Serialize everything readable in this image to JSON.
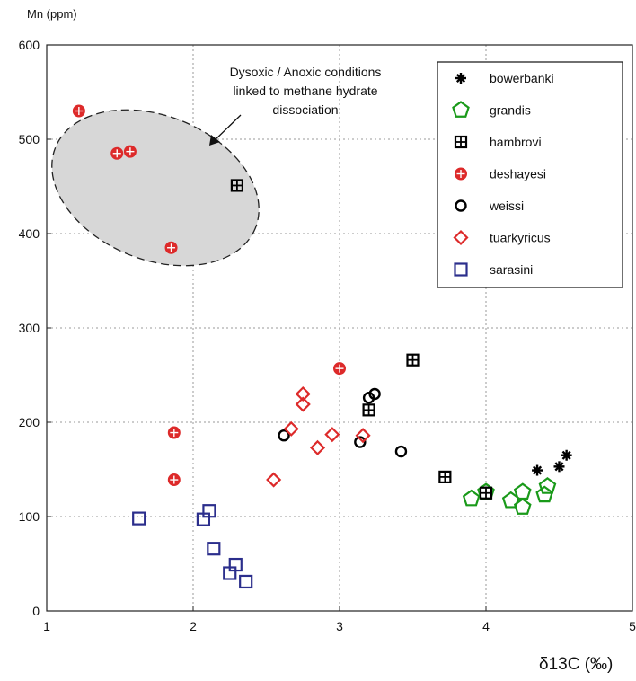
{
  "chart_data": {
    "type": "scatter",
    "ylabel": "Mn (ppm)",
    "xlabel": "δ13C (‰)",
    "xlim": [
      1,
      5
    ],
    "ylim": [
      0,
      600
    ],
    "x_ticks": [
      "1",
      "2",
      "3",
      "4",
      "5"
    ],
    "y_ticks": [
      "0",
      "100",
      "200",
      "300",
      "400",
      "500",
      "600"
    ],
    "grid": true,
    "legend_position": "top-right",
    "annotation": {
      "lines": [
        "Dysoxic / Anoxic conditions",
        "linked to methane hydrate",
        "dissociation"
      ]
    },
    "series": [
      {
        "name": "bowerbanki",
        "marker": "asterisk",
        "color": "#000000",
        "points": [
          [
            4.35,
            149
          ],
          [
            4.5,
            153
          ],
          [
            4.55,
            165
          ]
        ]
      },
      {
        "name": "grandis",
        "marker": "pentagon",
        "color": "#1a9a1a",
        "points": [
          [
            3.9,
            119
          ],
          [
            4.0,
            126
          ],
          [
            4.17,
            117
          ],
          [
            4.25,
            110
          ],
          [
            4.25,
            126
          ],
          [
            4.4,
            123
          ],
          [
            4.42,
            132
          ]
        ]
      },
      {
        "name": "hambrovi",
        "marker": "square-plus",
        "color": "#000000",
        "points": [
          [
            2.3,
            451
          ],
          [
            3.5,
            266
          ],
          [
            3.2,
            213
          ],
          [
            3.72,
            142
          ],
          [
            4.0,
            125
          ]
        ]
      },
      {
        "name": "deshayesi",
        "marker": "circle-plus",
        "color": "#dd2a2a",
        "points": [
          [
            1.22,
            530
          ],
          [
            1.48,
            485
          ],
          [
            1.57,
            487
          ],
          [
            1.85,
            385
          ],
          [
            3.0,
            257
          ],
          [
            1.87,
            189
          ],
          [
            1.87,
            139
          ]
        ]
      },
      {
        "name": "weissi",
        "marker": "open-circle",
        "color": "#000000",
        "points": [
          [
            2.62,
            186
          ],
          [
            3.14,
            179
          ],
          [
            3.2,
            226
          ],
          [
            3.24,
            230
          ],
          [
            3.42,
            169
          ]
        ]
      },
      {
        "name": "tuarkyricus",
        "marker": "diamond",
        "color": "#dd2a2a",
        "points": [
          [
            2.55,
            139
          ],
          [
            2.67,
            193
          ],
          [
            2.75,
            219
          ],
          [
            2.75,
            230
          ],
          [
            2.85,
            173
          ],
          [
            2.95,
            187
          ],
          [
            3.16,
            186
          ]
        ]
      },
      {
        "name": "sarasini",
        "marker": "open-square",
        "color": "#2b2e8c",
        "points": [
          [
            1.63,
            98
          ],
          [
            2.07,
            97
          ],
          [
            2.11,
            106
          ],
          [
            2.14,
            66
          ],
          [
            2.25,
            40
          ],
          [
            2.29,
            49
          ],
          [
            2.36,
            31
          ]
        ]
      }
    ]
  }
}
